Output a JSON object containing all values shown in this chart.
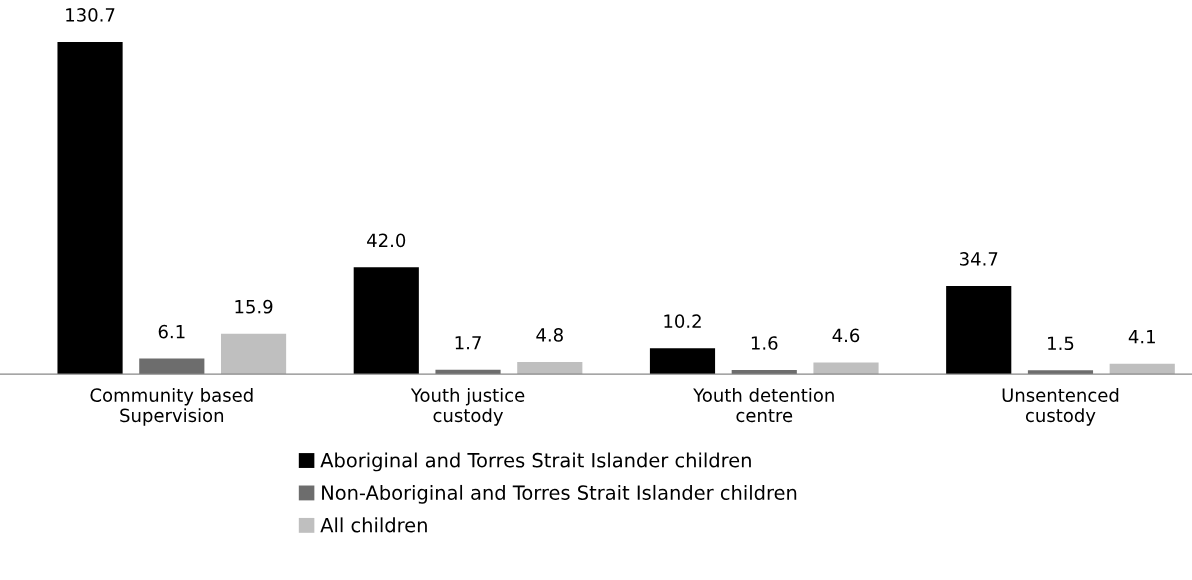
{
  "chart_data": {
    "type": "bar",
    "categories": [
      "Community based\nSupervision",
      "Youth justice\ncustody",
      "Youth detention\ncentre",
      "Unsentenced\ncustody"
    ],
    "series": [
      {
        "name": "Aboriginal and Torres Strait Islander children",
        "color": "#000000",
        "values": [
          130.7,
          42.0,
          10.2,
          34.7
        ],
        "value_labels": [
          "130.7",
          "42.0",
          "10.2",
          "34.7"
        ]
      },
      {
        "name": "Non-Aboriginal and Torres Strait Islander children",
        "color": "#6d6d6d",
        "values": [
          6.1,
          1.7,
          1.6,
          1.5
        ],
        "value_labels": [
          "6.1",
          "1.7",
          "1.6",
          "1.5"
        ]
      },
      {
        "name": "All children",
        "color": "#bfbfbf",
        "values": [
          15.9,
          4.8,
          4.6,
          4.1
        ],
        "value_labels": [
          "15.9",
          "4.8",
          "4.6",
          "4.1"
        ]
      }
    ],
    "grid": false,
    "legend": "bottom"
  }
}
